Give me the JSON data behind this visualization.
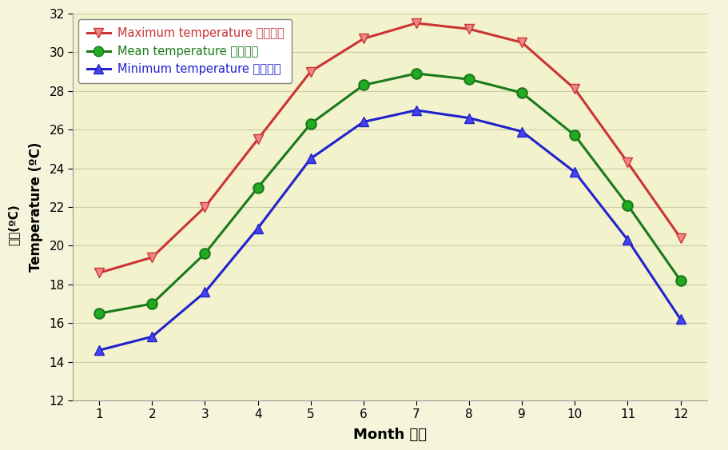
{
  "months": [
    1,
    2,
    3,
    4,
    5,
    6,
    7,
    8,
    9,
    10,
    11,
    12
  ],
  "max_temp": [
    18.6,
    19.4,
    22.0,
    25.5,
    29.0,
    30.7,
    31.5,
    31.2,
    30.5,
    28.1,
    24.3,
    20.4
  ],
  "mean_temp": [
    16.5,
    17.0,
    19.6,
    23.0,
    26.3,
    28.3,
    28.9,
    28.6,
    27.9,
    25.7,
    22.1,
    18.2
  ],
  "min_temp": [
    14.6,
    15.3,
    17.6,
    20.9,
    24.5,
    26.4,
    27.0,
    26.6,
    25.9,
    23.8,
    20.3,
    16.2
  ],
  "max_color": "#CC3333",
  "mean_color": "#1A7A1A",
  "min_color": "#2222CC",
  "max_marker_color": "#EE8888",
  "mean_marker_color": "#22AA22",
  "min_marker_color": "#4444EE",
  "bg_color": "#F5F5DC",
  "plot_bg_color": "#F2F2CC",
  "grid_color": "#CCCCAA",
  "ylim": [
    12,
    32
  ],
  "yticks": [
    12,
    14,
    16,
    18,
    20,
    22,
    24,
    26,
    28,
    30,
    32
  ],
  "xlabel": "Month 月份",
  "ylabel_en": "Temperature (ºC)",
  "ylabel_zh": "氣溫(ºC)",
  "legend_max": "Maximum temperature 最高氣溫",
  "legend_mean": "Mean temperature 平均氣溫",
  "legend_min": "Minimum temperature 最低氣溫",
  "legend_text_color_max": "#CC3333",
  "legend_text_color_mean": "#1A7A1A",
  "legend_text_color_min": "#2222CC"
}
